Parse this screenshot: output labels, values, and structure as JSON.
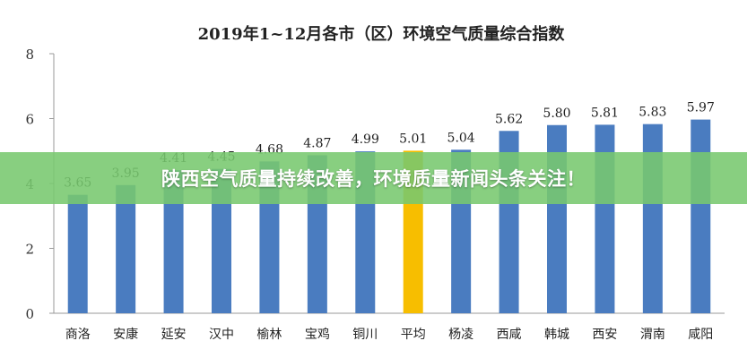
{
  "chart_data": {
    "type": "bar",
    "title": "2019年1~12月各市（区）环境空气质量综合指数",
    "categories": [
      "商洛",
      "安康",
      "延安",
      "汉中",
      "榆林",
      "宝鸡",
      "铜川",
      "平均",
      "杨凌",
      "西咸",
      "韩城",
      "西安",
      "渭南",
      "咸阳"
    ],
    "values": [
      3.65,
      3.95,
      4.41,
      4.45,
      4.68,
      4.87,
      4.99,
      5.01,
      5.04,
      5.62,
      5.8,
      5.81,
      5.83,
      5.97
    ],
    "value_labels": [
      "3.65",
      "3.95",
      "4.41",
      "4.45",
      "4.68",
      "4.87",
      "4.99",
      "5.01",
      "5.04",
      "5.62",
      "5.80",
      "5.81",
      "5.83",
      "5.97"
    ],
    "highlight_category": "平均",
    "ylim": [
      0,
      8
    ],
    "yticks": [
      0,
      2,
      4,
      6,
      8
    ],
    "xlabel": "",
    "ylabel": "",
    "grid": false,
    "bar_color": "#4a7cc0",
    "highlight_color": "#f7be00"
  },
  "banner": {
    "text": "陕西空气质量持续改善，环境质量新闻头条关注！",
    "color": "#7ac86e"
  }
}
